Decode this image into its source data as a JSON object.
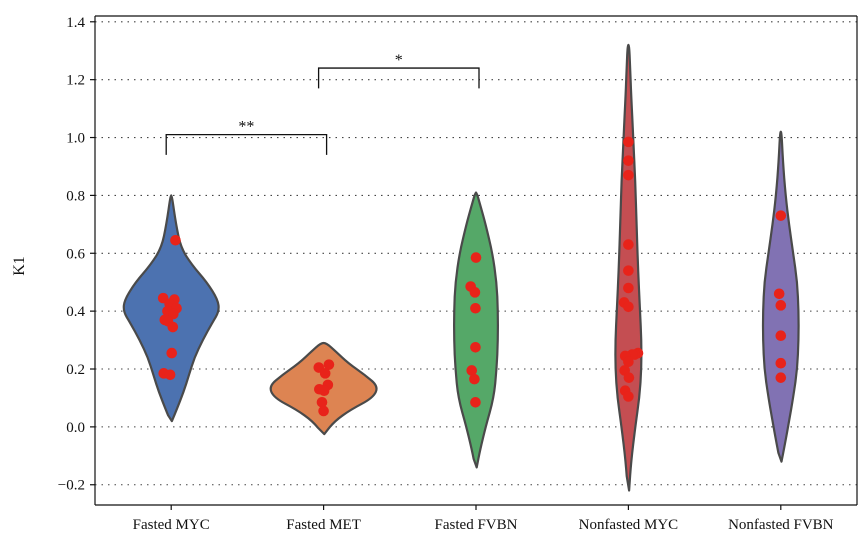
{
  "chart_data": {
    "type": "violin",
    "ylabel": "K1",
    "ylim": [
      -0.27,
      1.42
    ],
    "yticks": [
      -0.2,
      0.0,
      0.2,
      0.4,
      0.6,
      0.8,
      1.0,
      1.2,
      1.4
    ],
    "ytick_labels": [
      "−0.2",
      "0.0",
      "0.2",
      "0.4",
      "0.6",
      "0.8",
      "1.0",
      "1.2",
      "1.4"
    ],
    "grid": "horizontal-dotted",
    "categories": [
      "Fasted MYC",
      "Fasted MET",
      "Fasted FVBN",
      "Nonfasted MYC",
      "Nonfasted FVBN"
    ],
    "series": [
      {
        "color": "#4c72b0",
        "violin": [
          [
            0.02,
            0.005
          ],
          [
            0.06,
            0.04
          ],
          [
            0.12,
            0.09
          ],
          [
            0.18,
            0.13
          ],
          [
            0.24,
            0.17
          ],
          [
            0.3,
            0.23
          ],
          [
            0.36,
            0.3
          ],
          [
            0.4,
            0.35
          ],
          [
            0.44,
            0.34
          ],
          [
            0.5,
            0.26
          ],
          [
            0.56,
            0.15
          ],
          [
            0.62,
            0.07
          ],
          [
            0.7,
            0.035
          ],
          [
            0.8,
            0.005
          ]
        ],
        "points": [
          0.645,
          0.445,
          0.44,
          0.425,
          0.41,
          0.4,
          0.39,
          0.37,
          0.365,
          0.345,
          0.255,
          0.185,
          0.18
        ],
        "dx": [
          0.08,
          -0.15,
          0.06,
          -0.03,
          0.1,
          -0.07,
          0.04,
          -0.12,
          -0.06,
          0.03,
          0.01,
          -0.14,
          -0.02
        ]
      },
      {
        "color": "#dd8452",
        "violin": [
          [
            -0.025,
            0.005
          ],
          [
            0.02,
            0.08
          ],
          [
            0.06,
            0.2
          ],
          [
            0.1,
            0.36
          ],
          [
            0.14,
            0.4
          ],
          [
            0.18,
            0.3
          ],
          [
            0.22,
            0.18
          ],
          [
            0.26,
            0.09
          ],
          [
            0.29,
            0.02
          ]
        ],
        "points": [
          0.215,
          0.205,
          0.185,
          0.145,
          0.13,
          0.125,
          0.085,
          0.055
        ],
        "dx": [
          0.1,
          -0.09,
          0.03,
          0.08,
          -0.08,
          0.01,
          -0.03,
          0.0
        ]
      },
      {
        "color": "#55a868",
        "violin": [
          [
            -0.14,
            0.005
          ],
          [
            -0.08,
            0.03
          ],
          [
            0.0,
            0.07
          ],
          [
            0.1,
            0.13
          ],
          [
            0.2,
            0.15
          ],
          [
            0.3,
            0.16
          ],
          [
            0.4,
            0.16
          ],
          [
            0.5,
            0.15
          ],
          [
            0.6,
            0.12
          ],
          [
            0.7,
            0.07
          ],
          [
            0.76,
            0.035
          ],
          [
            0.81,
            0.005
          ]
        ],
        "points": [
          0.585,
          0.485,
          0.465,
          0.41,
          0.275,
          0.195,
          0.165,
          0.085
        ],
        "dx": [
          0.0,
          -0.1,
          -0.02,
          -0.01,
          -0.01,
          -0.08,
          -0.03,
          -0.01
        ]
      },
      {
        "color": "#c44e52",
        "violin": [
          [
            -0.22,
            0.005
          ],
          [
            -0.12,
            0.02
          ],
          [
            0.0,
            0.05
          ],
          [
            0.1,
            0.08
          ],
          [
            0.2,
            0.095
          ],
          [
            0.3,
            0.095
          ],
          [
            0.4,
            0.085
          ],
          [
            0.55,
            0.07
          ],
          [
            0.7,
            0.06
          ],
          [
            0.85,
            0.05
          ],
          [
            1.0,
            0.035
          ],
          [
            1.15,
            0.02
          ],
          [
            1.25,
            0.012
          ],
          [
            1.32,
            0.005
          ]
        ],
        "points": [
          0.985,
          0.92,
          0.87,
          0.63,
          0.54,
          0.48,
          0.43,
          0.415,
          0.255,
          0.25,
          0.25,
          0.245,
          0.225,
          0.195,
          0.17,
          0.125,
          0.105
        ],
        "dx": [
          0.0,
          0.0,
          0.0,
          0.0,
          0.0,
          0.0,
          -0.08,
          0.0,
          0.18,
          0.12,
          0.07,
          -0.06,
          0.0,
          -0.07,
          0.01,
          -0.06,
          0.0
        ],
        "dx_note": ""
      },
      {
        "color": "#8172b3",
        "violin": [
          [
            -0.12,
            0.005
          ],
          [
            -0.06,
            0.03
          ],
          [
            0.02,
            0.06
          ],
          [
            0.1,
            0.09
          ],
          [
            0.2,
            0.12
          ],
          [
            0.3,
            0.13
          ],
          [
            0.4,
            0.13
          ],
          [
            0.5,
            0.12
          ],
          [
            0.6,
            0.09
          ],
          [
            0.7,
            0.06
          ],
          [
            0.8,
            0.035
          ],
          [
            0.92,
            0.015
          ],
          [
            1.02,
            0.005
          ]
        ],
        "points": [
          0.73,
          0.46,
          0.42,
          0.315,
          0.22,
          0.17
        ],
        "dx": [
          0.0,
          -0.03,
          0.0,
          0.0,
          0.0,
          0.0
        ]
      }
    ],
    "annotations": [
      {
        "label": "**",
        "from": 0,
        "to": 1,
        "y": 1.01,
        "drop": 0.07
      },
      {
        "label": "*",
        "from": 1,
        "to": 2,
        "y": 1.24,
        "drop": 0.07
      }
    ]
  }
}
